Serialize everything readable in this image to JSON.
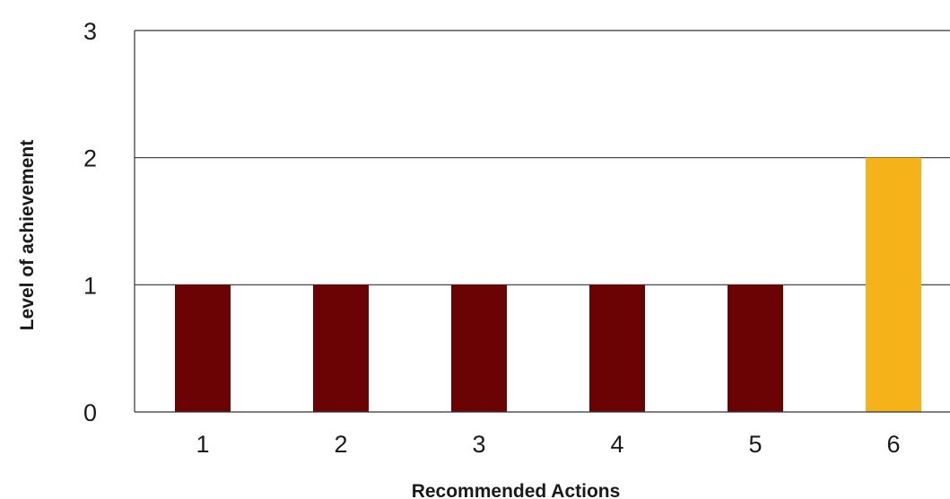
{
  "chart_data": {
    "type": "bar",
    "categories": [
      "1",
      "2",
      "3",
      "4",
      "5",
      "6"
    ],
    "values": [
      1,
      1,
      1,
      1,
      1,
      2
    ],
    "bar_colors": [
      "#6b0204",
      "#6b0204",
      "#6b0204",
      "#6b0204",
      "#6b0204",
      "#f5b319"
    ],
    "xlabel": "Recommended Actions",
    "ylabel": "Level of achievement",
    "ylim": [
      0,
      3
    ],
    "yticks": [
      0,
      1,
      2,
      3
    ],
    "grid": true,
    "grid_color": "#333333"
  }
}
